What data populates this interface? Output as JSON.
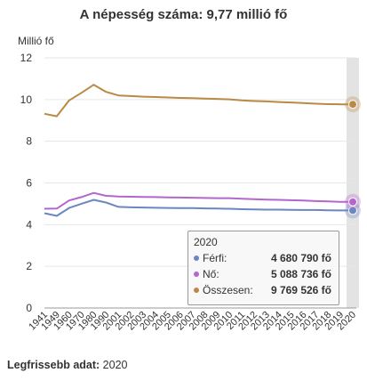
{
  "title": "A népesség száma: 9,77 millió fő",
  "chart_data": {
    "type": "line",
    "ylabel": "Millió fő",
    "ylim": [
      0,
      12
    ],
    "yticks": [
      "0",
      "2",
      "4",
      "6",
      "8",
      "10",
      "12"
    ],
    "grid": true,
    "categories": [
      "1941",
      "1949",
      "1960",
      "1970",
      "1980",
      "1990",
      "2001",
      "2002",
      "2003",
      "2004",
      "2005",
      "2006",
      "2007",
      "2008",
      "2009",
      "2010",
      "2011",
      "2012",
      "2013",
      "2014",
      "2015",
      "2016",
      "2017",
      "2018",
      "2019",
      "2020"
    ],
    "series": [
      {
        "name": "Férfi",
        "color": "#6b87c0",
        "values": [
          4.55,
          4.42,
          4.8,
          5.0,
          5.19,
          5.06,
          4.85,
          4.83,
          4.82,
          4.81,
          4.8,
          4.79,
          4.79,
          4.78,
          4.77,
          4.76,
          4.74,
          4.73,
          4.72,
          4.72,
          4.71,
          4.7,
          4.7,
          4.69,
          4.68,
          4.68
        ]
      },
      {
        "name": "Nő",
        "color": "#b366cc",
        "values": [
          4.76,
          4.77,
          5.16,
          5.32,
          5.52,
          5.38,
          5.35,
          5.34,
          5.33,
          5.32,
          5.31,
          5.3,
          5.29,
          5.28,
          5.27,
          5.27,
          5.24,
          5.22,
          5.2,
          5.19,
          5.17,
          5.16,
          5.13,
          5.11,
          5.09,
          5.09
        ]
      },
      {
        "name": "Összesen",
        "color": "#b98a45",
        "values": [
          9.32,
          9.2,
          9.96,
          10.32,
          10.71,
          10.37,
          10.2,
          10.17,
          10.14,
          10.12,
          10.1,
          10.08,
          10.07,
          10.05,
          10.03,
          10.01,
          9.96,
          9.93,
          9.91,
          9.88,
          9.86,
          9.83,
          9.8,
          9.78,
          9.77,
          9.77
        ]
      }
    ],
    "highlight_index": 25
  },
  "tooltip": {
    "year": "2020",
    "rows": [
      {
        "label": "Férfi:",
        "value": "4 680 790 fő",
        "color": "#6b87c0"
      },
      {
        "label": "Nő:",
        "value": "5 088 736 fő",
        "color": "#b366cc"
      },
      {
        "label": "Összesen:",
        "value": "9 769 526 fő",
        "color": "#b98a45"
      }
    ]
  },
  "footer": {
    "label": "Legfrissebb adat:",
    "value": "2020"
  }
}
